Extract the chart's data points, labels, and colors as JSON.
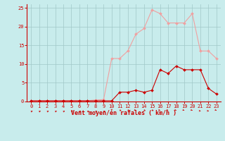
{
  "x": [
    0,
    1,
    2,
    3,
    4,
    5,
    6,
    7,
    8,
    9,
    10,
    11,
    12,
    13,
    14,
    15,
    16,
    17,
    18,
    19,
    20,
    21,
    22,
    23
  ],
  "y_rafales": [
    0.2,
    0.2,
    0.2,
    0.2,
    0.2,
    0.2,
    0.2,
    0.2,
    0.4,
    0.5,
    11.5,
    11.5,
    13.5,
    18,
    19.5,
    24.5,
    23.5,
    21,
    21,
    21,
    23.5,
    13.5,
    13.5,
    11.5
  ],
  "y_moyen": [
    0.2,
    0.2,
    0.2,
    0.2,
    0.2,
    0.2,
    0.2,
    0.2,
    0.2,
    0.2,
    0.2,
    2.5,
    2.5,
    3,
    2.5,
    3,
    8.5,
    7.5,
    9.5,
    8.5,
    8.5,
    8.5,
    3.5,
    2
  ],
  "color_rafales": "#f0a0a0",
  "color_moyen": "#cc0000",
  "bg_color": "#c8ecec",
  "grid_color": "#a0c8c8",
  "axis_color": "#cc0000",
  "tick_color": "#cc0000",
  "label_color": "#cc0000",
  "xlabel": "Vent moyen/en rafales ( km/h )",
  "ylim": [
    0,
    26
  ],
  "xlim": [
    -0.5,
    23.5
  ],
  "yticks": [
    0,
    5,
    10,
    15,
    20,
    25
  ],
  "xticks": [
    0,
    1,
    2,
    3,
    4,
    5,
    6,
    7,
    8,
    9,
    10,
    11,
    12,
    13,
    14,
    15,
    16,
    17,
    18,
    19,
    20,
    21,
    22,
    23
  ]
}
